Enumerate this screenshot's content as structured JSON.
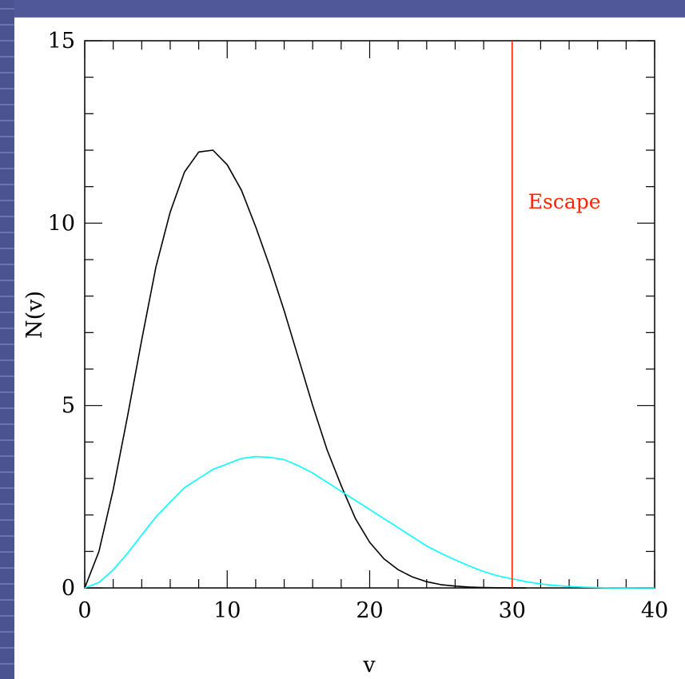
{
  "chart_data": {
    "type": "line",
    "title": "",
    "xlabel": "v",
    "ylabel": "N(v)",
    "xlim": [
      0,
      40
    ],
    "ylim": [
      0,
      15
    ],
    "x_ticks": [
      0,
      10,
      20,
      30,
      40
    ],
    "y_ticks": [
      0,
      5,
      10,
      15
    ],
    "grid": false,
    "series": [
      {
        "color": "#000000",
        "x": [
          0,
          1,
          2,
          3,
          4,
          5,
          6,
          7,
          8,
          9,
          10,
          11,
          12,
          13,
          14,
          15,
          16,
          17,
          18,
          19,
          20,
          21,
          22,
          23,
          24,
          25,
          26,
          27,
          28,
          29,
          30,
          31
        ],
        "values": [
          0,
          1.0,
          2.7,
          4.7,
          6.8,
          8.8,
          10.3,
          11.4,
          11.95,
          12.0,
          11.6,
          10.9,
          9.9,
          8.8,
          7.6,
          6.3,
          5.0,
          3.8,
          2.8,
          1.9,
          1.25,
          0.8,
          0.5,
          0.3,
          0.17,
          0.09,
          0.05,
          0.025,
          0.01,
          0.005,
          0.002,
          0.0
        ]
      },
      {
        "color": "#00ffff",
        "x": [
          0,
          1,
          2,
          3,
          4,
          5,
          6,
          7,
          8,
          9,
          10,
          11,
          12,
          13,
          14,
          15,
          16,
          17,
          18,
          19,
          20,
          21,
          22,
          23,
          24,
          25,
          26,
          27,
          28,
          29,
          30,
          31,
          32,
          33,
          34,
          35,
          36,
          37,
          38,
          39,
          40
        ],
        "values": [
          0,
          0.15,
          0.5,
          0.95,
          1.45,
          1.95,
          2.35,
          2.75,
          3.0,
          3.25,
          3.4,
          3.55,
          3.6,
          3.58,
          3.52,
          3.35,
          3.15,
          2.9,
          2.65,
          2.4,
          2.15,
          1.9,
          1.65,
          1.4,
          1.15,
          0.95,
          0.77,
          0.6,
          0.45,
          0.33,
          0.25,
          0.17,
          0.11,
          0.07,
          0.04,
          0.02,
          0.01,
          0.0,
          0.0,
          0.0,
          0.0
        ]
      }
    ],
    "annotations": [
      {
        "type": "vline",
        "x": 30,
        "color": "#ff2200",
        "label": "Escape"
      }
    ]
  }
}
